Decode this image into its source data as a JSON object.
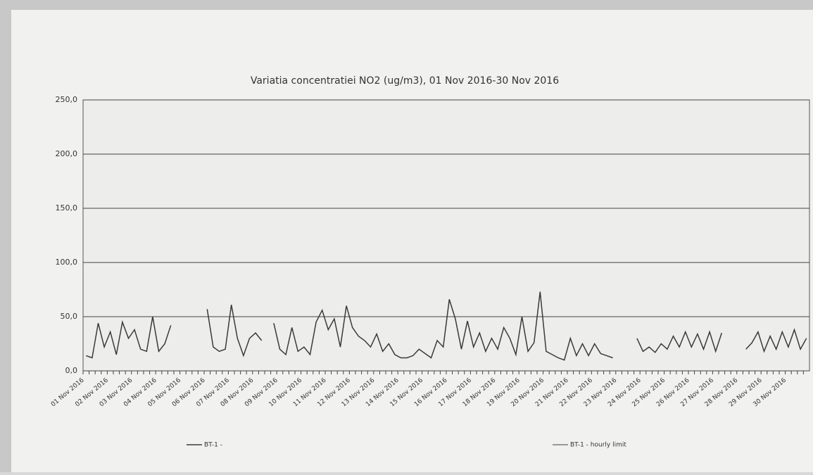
{
  "chart_data": {
    "type": "line",
    "title": "Variatia concentratiei  NO2 (ug/m3), 01 Nov 2016-30 Nov 2016",
    "categories": [
      "01 Nov 2016",
      null,
      null,
      null,
      "02 Nov 2016",
      null,
      null,
      null,
      "03 Nov 2016",
      null,
      null,
      null,
      "04 Nov 2016",
      null,
      null,
      null,
      "05 Nov 2016",
      null,
      null,
      null,
      "06 Nov 2016",
      null,
      null,
      null,
      "07 Nov 2016",
      null,
      null,
      null,
      "08 Nov 2016",
      null,
      null,
      null,
      "09 Nov 2016",
      null,
      null,
      null,
      "10 Nov 2016",
      null,
      null,
      null,
      "11 Nov 2016",
      null,
      null,
      null,
      "12 Nov 2016",
      null,
      null,
      null,
      "13 Nov 2016",
      null,
      null,
      null,
      "14 Nov 2016",
      null,
      null,
      null,
      "15 Nov 2016",
      null,
      null,
      null,
      "16 Nov 2016",
      null,
      null,
      null,
      "17 Nov 2016",
      null,
      null,
      null,
      "18 Nov 2016",
      null,
      null,
      null,
      "19 Nov 2016",
      null,
      null,
      null,
      "20 Nov 2016",
      null,
      null,
      null,
      "21 Nov 2016",
      null,
      null,
      null,
      "22 Nov 2016",
      null,
      null,
      null,
      "23 Nov 2016",
      null,
      null,
      null,
      "24 Nov 2016",
      null,
      null,
      null,
      "25 Nov 2016",
      null,
      null,
      null,
      "26 Nov 2016",
      null,
      null,
      null,
      "27 Nov 2016",
      null,
      null,
      null,
      "28 Nov 2016",
      null,
      null,
      null,
      "29 Nov 2016",
      null,
      null,
      null,
      "30 Nov 2016",
      null,
      null,
      null
    ],
    "series": [
      {
        "name": "BT-1 -",
        "color": "#3a3a3a",
        "values": [
          14,
          12,
          44,
          22,
          36,
          15,
          45,
          30,
          38,
          20,
          18,
          50,
          18,
          25,
          42,
          null,
          null,
          null,
          null,
          null,
          57,
          22,
          18,
          20,
          61,
          30,
          14,
          30,
          35,
          28,
          null,
          44,
          20,
          15,
          40,
          18,
          22,
          15,
          45,
          56,
          38,
          48,
          22,
          60,
          40,
          32,
          28,
          22,
          34,
          18,
          25,
          15,
          12,
          12,
          14,
          20,
          16,
          12,
          28,
          22,
          66,
          48,
          20,
          46,
          22,
          35,
          18,
          30,
          20,
          40,
          30,
          15,
          50,
          18,
          26,
          73,
          18,
          15,
          12,
          10,
          30,
          14,
          25,
          14,
          25,
          16,
          14,
          12,
          null,
          null,
          null,
          30,
          18,
          22,
          17,
          25,
          20,
          32,
          22,
          36,
          22,
          34,
          20,
          36,
          18,
          35,
          null,
          null,
          null,
          20,
          26,
          36,
          18,
          32,
          20,
          36,
          22,
          38,
          20,
          30
        ]
      },
      {
        "name": "BT-1 - hourly limit",
        "color": "#7a7a7a"
      }
    ],
    "ylim": [
      0,
      250
    ],
    "yticks": [
      {
        "value": 0,
        "label": "0,0"
      },
      {
        "value": 50,
        "label": "50,0"
      },
      {
        "value": 100,
        "label": "100,0"
      },
      {
        "value": 150,
        "label": "150,0"
      },
      {
        "value": 200,
        "label": "200,0"
      },
      {
        "value": 250,
        "label": "250,0"
      }
    ],
    "grid": true
  }
}
